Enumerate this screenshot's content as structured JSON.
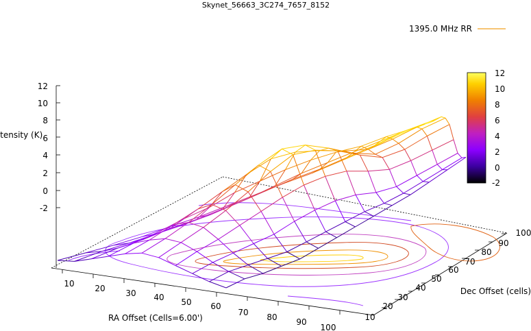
{
  "chart_data": {
    "type": "surface",
    "title": "Skynet_56663_3C274_7657_8152",
    "legend": {
      "entries": [
        "1395.0 MHz RR"
      ],
      "position": "top-right",
      "color": "#f0a020"
    },
    "zlabel": "Intensity (K)",
    "xlabel": "RA Offset (Cells=6.00')",
    "ylabel": "Dec Offset (cells)",
    "z_ticks": [
      "12",
      "10",
      "8",
      "6",
      "4",
      "2",
      "0",
      "-2"
    ],
    "x_ticks": [
      "10",
      "20",
      "30",
      "40",
      "50",
      "60",
      "70",
      "80",
      "90",
      "100"
    ],
    "y_ticks": [
      "10",
      "20",
      "30",
      "40",
      "50",
      "60",
      "70",
      "80",
      "90",
      "100"
    ],
    "colorbar_ticks": [
      "12",
      "10",
      "8",
      "6",
      "4",
      "2",
      "0",
      "-2"
    ],
    "zlim": [
      -2,
      12
    ],
    "xlim": [
      0,
      100
    ],
    "ylim": [
      0,
      100
    ],
    "contours": true,
    "palette": [
      "#000000",
      "#3c00a0",
      "#8c00ff",
      "#c020c0",
      "#e04040",
      "#f08000",
      "#ffd000",
      "#ffff60"
    ],
    "surface_rows": [
      [
        0.0,
        0.6,
        1.2,
        1.9,
        2.8,
        3.6,
        4.6,
        5.6,
        6.6,
        7.5,
        8.6,
        9.7,
        11.0,
        12.0
      ],
      [
        0.2,
        1.0,
        1.6,
        2.3,
        3.0,
        3.8,
        4.8,
        5.8,
        6.8,
        7.6,
        8.6,
        9.6,
        10.8,
        11.6
      ],
      [
        0.8,
        1.6,
        2.2,
        3.0,
        3.6,
        4.4,
        5.2,
        6.2,
        7.2,
        8.0,
        8.8,
        9.6,
        10.4,
        11.0
      ],
      [
        1.4,
        2.4,
        3.2,
        4.2,
        5.0,
        6.2,
        7.0,
        7.8,
        8.4,
        8.8,
        9.0,
        9.6,
        10.0,
        10.6
      ],
      [
        2.0,
        3.0,
        4.2,
        5.4,
        6.8,
        8.2,
        9.4,
        9.6,
        9.2,
        8.6,
        8.2,
        8.8,
        9.6,
        10.2
      ],
      [
        2.4,
        3.4,
        4.6,
        6.0,
        7.6,
        9.2,
        10.4,
        10.2,
        9.2,
        8.0,
        7.2,
        7.8,
        8.8,
        9.4
      ],
      [
        2.2,
        3.2,
        4.2,
        5.4,
        6.8,
        8.4,
        9.6,
        9.4,
        8.6,
        7.4,
        6.4,
        6.6,
        7.4,
        8.0
      ],
      [
        1.6,
        2.4,
        3.0,
        3.8,
        4.6,
        5.4,
        6.0,
        6.2,
        6.0,
        5.2,
        4.6,
        4.8,
        5.2,
        5.6
      ],
      [
        1.0,
        1.4,
        1.6,
        1.8,
        2.0,
        2.6,
        3.0,
        3.2,
        3.0,
        2.4,
        2.2,
        2.6,
        3.0,
        3.4
      ],
      [
        0.4,
        0.6,
        0.4,
        0.2,
        0.0,
        0.2,
        0.4,
        0.6,
        0.8,
        0.8,
        1.0,
        1.4,
        1.8,
        2.2
      ],
      [
        0.0,
        0.0,
        -0.4,
        -0.6,
        -0.8,
        -0.6,
        -0.4,
        -0.2,
        0.0,
        0.2,
        0.4,
        0.8,
        1.2,
        1.6
      ]
    ]
  }
}
